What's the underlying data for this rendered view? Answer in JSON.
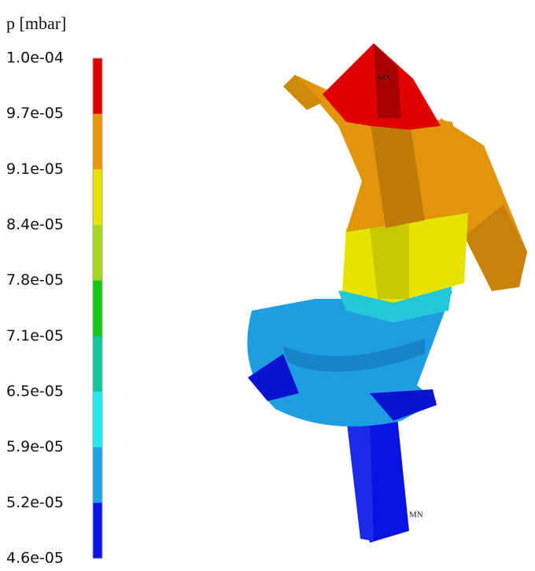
{
  "legend": {
    "title": "p [mbar]",
    "labels": [
      "1.0e-04",
      "9.7e-05",
      "9.1e-05",
      "8.4e-05",
      "7.8e-05",
      "7.1e-05",
      "6.5e-05",
      "5.9e-05",
      "5.2e-05",
      "4.6e-05"
    ],
    "colors": [
      "#e00000",
      "#e8960e",
      "#e4e400",
      "#a6d61c",
      "#12c812",
      "#12c89c",
      "#22eaf0",
      "#1ea4e6",
      "#0a14e0"
    ]
  },
  "annotations": {
    "max": "MX",
    "min": "MN"
  }
}
